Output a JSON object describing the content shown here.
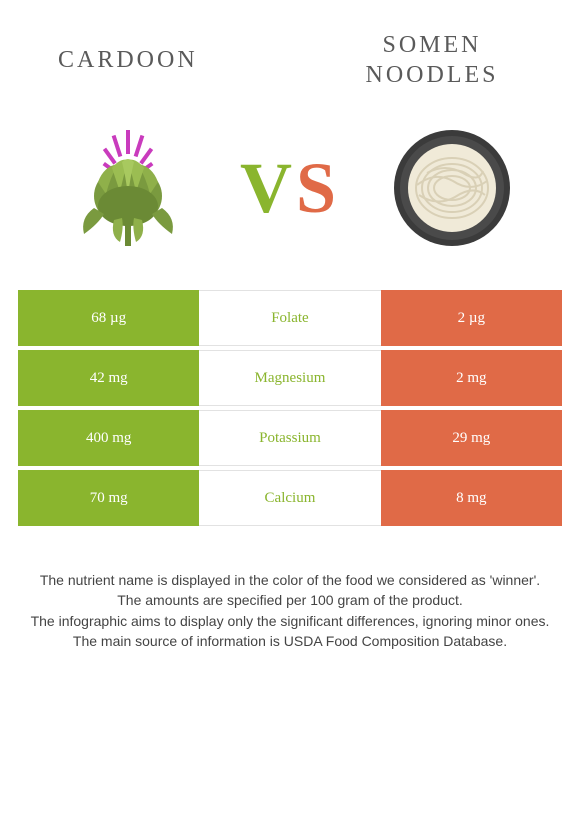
{
  "foods": {
    "left": {
      "title": "Cardoon"
    },
    "right": {
      "title": "Somen noodles"
    }
  },
  "vs": {
    "v": "V",
    "s": "S"
  },
  "colors": {
    "green": "#8ab52e",
    "orange": "#e06a47",
    "border": "#e2e2e2",
    "text": "#444444"
  },
  "typography": {
    "title_fontsize": 24,
    "title_letterspacing": 3,
    "vs_fontsize": 72,
    "cell_fontsize": 15,
    "footer_fontsize": 14
  },
  "nutrients": [
    {
      "name": "Folate",
      "left": "68 µg",
      "right": "2 µg",
      "winner": "left"
    },
    {
      "name": "Magnesium",
      "left": "42 mg",
      "right": "2 mg",
      "winner": "left"
    },
    {
      "name": "Potassium",
      "left": "400 mg",
      "right": "29 mg",
      "winner": "left"
    },
    {
      "name": "Calcium",
      "left": "70 mg",
      "right": "8 mg",
      "winner": "left"
    }
  ],
  "footer_lines": [
    "The nutrient name is displayed in the color of the food we considered as 'winner'.",
    "The amounts are specified per 100 gram of the product.",
    "The infographic aims to display only the significant differences, ignoring minor ones.",
    "The main source of information is USDA Food Composition Database."
  ]
}
